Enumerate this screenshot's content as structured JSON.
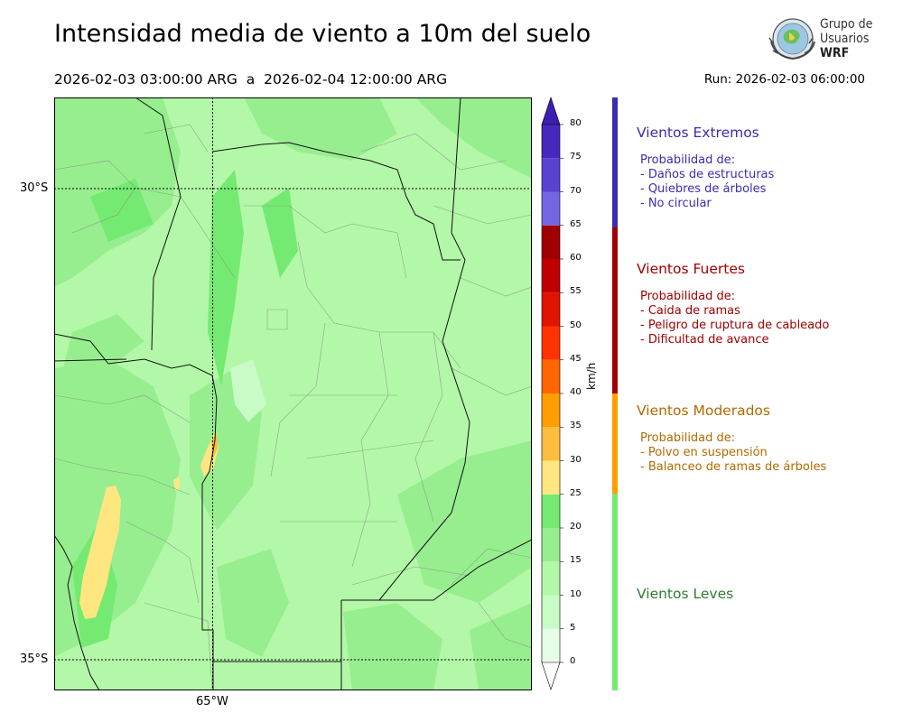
{
  "header": {
    "title": "Intensidad media de viento a 10m del suelo",
    "period_start": "2026-02-03 03:00:00 ARG",
    "period_sep": "a",
    "period_end": "2026-02-04 12:00:00 ARG",
    "run": "Run: 2026-02-03 06:00:00"
  },
  "logo": {
    "line1": "Grupo de",
    "line2": "Usuarios",
    "line3": "WRF"
  },
  "map": {
    "lat_labels": [
      "30°S",
      "35°S"
    ],
    "lon_labels": [
      "65°W"
    ]
  },
  "colorbar": {
    "unit": "km/h",
    "ticks": [
      "0",
      "5",
      "10",
      "15",
      "20",
      "25",
      "30",
      "35",
      "40",
      "45",
      "50",
      "55",
      "60",
      "65",
      "70",
      "75",
      "80"
    ],
    "colors": [
      "#e8fde8",
      "#c8fbc6",
      "#b3f8a8",
      "#97ee8f",
      "#75ea72",
      "#ffe681",
      "#fdbd3e",
      "#ff9e00",
      "#ff6600",
      "#ff3300",
      "#e01400",
      "#c00000",
      "#a00000",
      "#7466e0",
      "#5a42d0",
      "#4628be"
    ],
    "extend_low": "#ffffff",
    "extend_high": "#3c1fb0"
  },
  "categories": [
    {
      "name": "Vientos Extremos",
      "color": "#3a2db0",
      "strip": "#3a2db0",
      "desc_title": "Probabilidad de:",
      "items": [
        "- Daños de estructuras",
        "- Quiebres de árboles",
        "- No circular"
      ]
    },
    {
      "name": "Vientos Fuertes",
      "color": "#a00000",
      "strip": "#a00000",
      "desc_title": "Probabilidad de:",
      "items": [
        "- Caida de ramas",
        "- Peligro de ruptura de cableado",
        "- Dificultad de avance"
      ]
    },
    {
      "name": "Vientos Moderados",
      "color": "#b06a00",
      "strip": "#ff9e00",
      "desc_title": "Probabilidad de:",
      "items": [
        "- Polvo en suspensión",
        "- Balanceo de ramas de árboles"
      ]
    },
    {
      "name": "Vientos Leves",
      "color": "#2e7d2e",
      "strip": "#75ea72",
      "desc_title": "",
      "items": []
    }
  ]
}
